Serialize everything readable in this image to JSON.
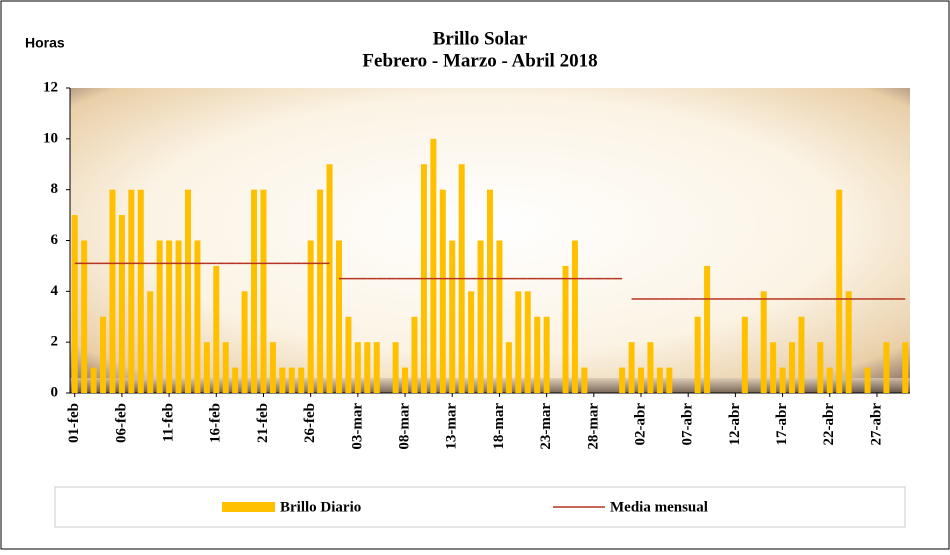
{
  "chart_data": {
    "type": "bar",
    "title": "Brillo  Solar",
    "subtitle": "Febrero - Marzo - Abril 2018",
    "y_label": "Horas",
    "categories": [
      "01-feb",
      null,
      null,
      null,
      null,
      "06-feb",
      null,
      null,
      null,
      null,
      "11-feb",
      null,
      null,
      null,
      null,
      "16-feb",
      null,
      null,
      null,
      null,
      "21-feb",
      null,
      null,
      null,
      null,
      "26-feb",
      null,
      null,
      null,
      null,
      "03-mar",
      null,
      null,
      null,
      null,
      "08-mar",
      null,
      null,
      null,
      null,
      "13-mar",
      null,
      null,
      null,
      null,
      "18-mar",
      null,
      null,
      null,
      null,
      "23-mar",
      null,
      null,
      null,
      null,
      "28-mar",
      null,
      null,
      null,
      null,
      "02-abr",
      null,
      null,
      null,
      null,
      "07-abr",
      null,
      null,
      null,
      null,
      "12-abr",
      null,
      null,
      null,
      null,
      "17-abr",
      null,
      null,
      null,
      null,
      "22-abr",
      null,
      null,
      null,
      null,
      "27-abr",
      null,
      null,
      null
    ],
    "series": [
      {
        "name": "Brillo Diario",
        "color": "#FFC000",
        "values": [
          7,
          6,
          1,
          3,
          8,
          7,
          8,
          8,
          4,
          6,
          6,
          6,
          8,
          6,
          2,
          5,
          2,
          1,
          4,
          8,
          8,
          2,
          1,
          1,
          1,
          6,
          8,
          9,
          6,
          3,
          2,
          2,
          2,
          0,
          2,
          1,
          3,
          9,
          10,
          8,
          6,
          9,
          4,
          6,
          8,
          6,
          2,
          4,
          4,
          3,
          3,
          0,
          5,
          6,
          1,
          0,
          0,
          0,
          1,
          2,
          1,
          2,
          1,
          1,
          0,
          0,
          3,
          5,
          0,
          0,
          0,
          3,
          0,
          4,
          2,
          1,
          2,
          3,
          0,
          2,
          1,
          8,
          4,
          0,
          1,
          0,
          2,
          0,
          2
        ]
      },
      {
        "name": "Media mensual",
        "color": "#B5341F",
        "values": [
          5.1,
          5.1,
          5.1,
          5.1,
          5.1,
          5.1,
          5.1,
          5.1,
          5.1,
          5.1,
          5.1,
          5.1,
          5.1,
          5.1,
          5.1,
          5.1,
          5.1,
          5.1,
          5.1,
          5.1,
          5.1,
          5.1,
          5.1,
          5.1,
          5.1,
          5.1,
          5.1,
          5.1,
          4.5,
          4.5,
          4.5,
          4.5,
          4.5,
          4.5,
          4.5,
          4.5,
          4.5,
          4.5,
          4.5,
          4.5,
          4.5,
          4.5,
          4.5,
          4.5,
          4.5,
          4.5,
          4.5,
          4.5,
          4.5,
          4.5,
          4.5,
          4.5,
          4.5,
          4.5,
          4.5,
          4.5,
          4.5,
          4.5,
          4.5,
          3.7,
          3.7,
          3.7,
          3.7,
          3.7,
          3.7,
          3.7,
          3.7,
          3.7,
          3.7,
          3.7,
          3.7,
          3.7,
          3.7,
          3.7,
          3.7,
          3.7,
          3.7,
          3.7,
          3.7,
          3.7,
          3.7,
          3.7,
          3.7,
          3.7,
          3.7,
          3.7,
          3.7,
          3.7,
          3.7
        ]
      }
    ],
    "ylim": [
      0,
      12
    ],
    "yticks": [
      0,
      2,
      4,
      6,
      8,
      10,
      12
    ]
  }
}
